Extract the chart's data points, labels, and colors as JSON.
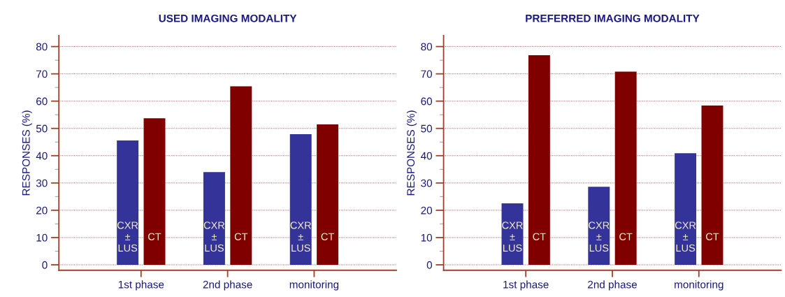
{
  "chart_data": [
    {
      "type": "bar",
      "title": "USED IMAGING MODALITY",
      "ylabel": "RESPONSES (%)",
      "categories": [
        "1st phase",
        "2nd phase",
        "monitoring"
      ],
      "series": [
        {
          "name": "CXR\n±\nLUS",
          "color": "#333399",
          "values": [
            45.6,
            34.0,
            47.9
          ]
        },
        {
          "name": "CT",
          "color": "#800000",
          "values": [
            53.7,
            65.4,
            51.5
          ]
        }
      ],
      "ylim": [
        -2,
        84
      ],
      "yticks": [
        0,
        {
          "value": 5,
          "label": null
        },
        10,
        {
          "value": 15,
          "label": null
        },
        20,
        {
          "value": 25,
          "label": null
        },
        30,
        {
          "value": 35,
          "label": null
        },
        40,
        {
          "value": 45,
          "label": null
        },
        50,
        {
          "value": 55,
          "label": null
        },
        60,
        {
          "value": 65,
          "label": null
        },
        70,
        {
          "value": 75,
          "label": null
        },
        80
      ],
      "grid": "y",
      "legend": false
    },
    {
      "type": "bar",
      "title": "PREFERRED IMAGING MODALITY",
      "ylabel": "RESPONSES (%)",
      "categories": [
        "1st phase",
        "2nd phase",
        "monitoring"
      ],
      "series": [
        {
          "name": "CXR\n±\nLUS",
          "color": "#333399",
          "values": [
            22.5,
            28.6,
            40.9
          ]
        },
        {
          "name": "CT",
          "color": "#800000",
          "values": [
            76.8,
            70.8,
            58.4
          ]
        }
      ],
      "ylim": [
        -2,
        84
      ],
      "yticks": [
        0,
        {
          "value": 5,
          "label": null
        },
        10,
        {
          "value": 15,
          "label": null
        },
        20,
        {
          "value": 25,
          "label": null
        },
        30,
        {
          "value": 35,
          "label": null
        },
        40,
        {
          "value": 45,
          "label": null
        },
        50,
        {
          "value": 55,
          "label": null
        },
        60,
        {
          "value": 65,
          "label": null
        },
        70,
        {
          "value": 75,
          "label": null
        },
        80
      ],
      "grid": "y",
      "legend": false
    }
  ]
}
